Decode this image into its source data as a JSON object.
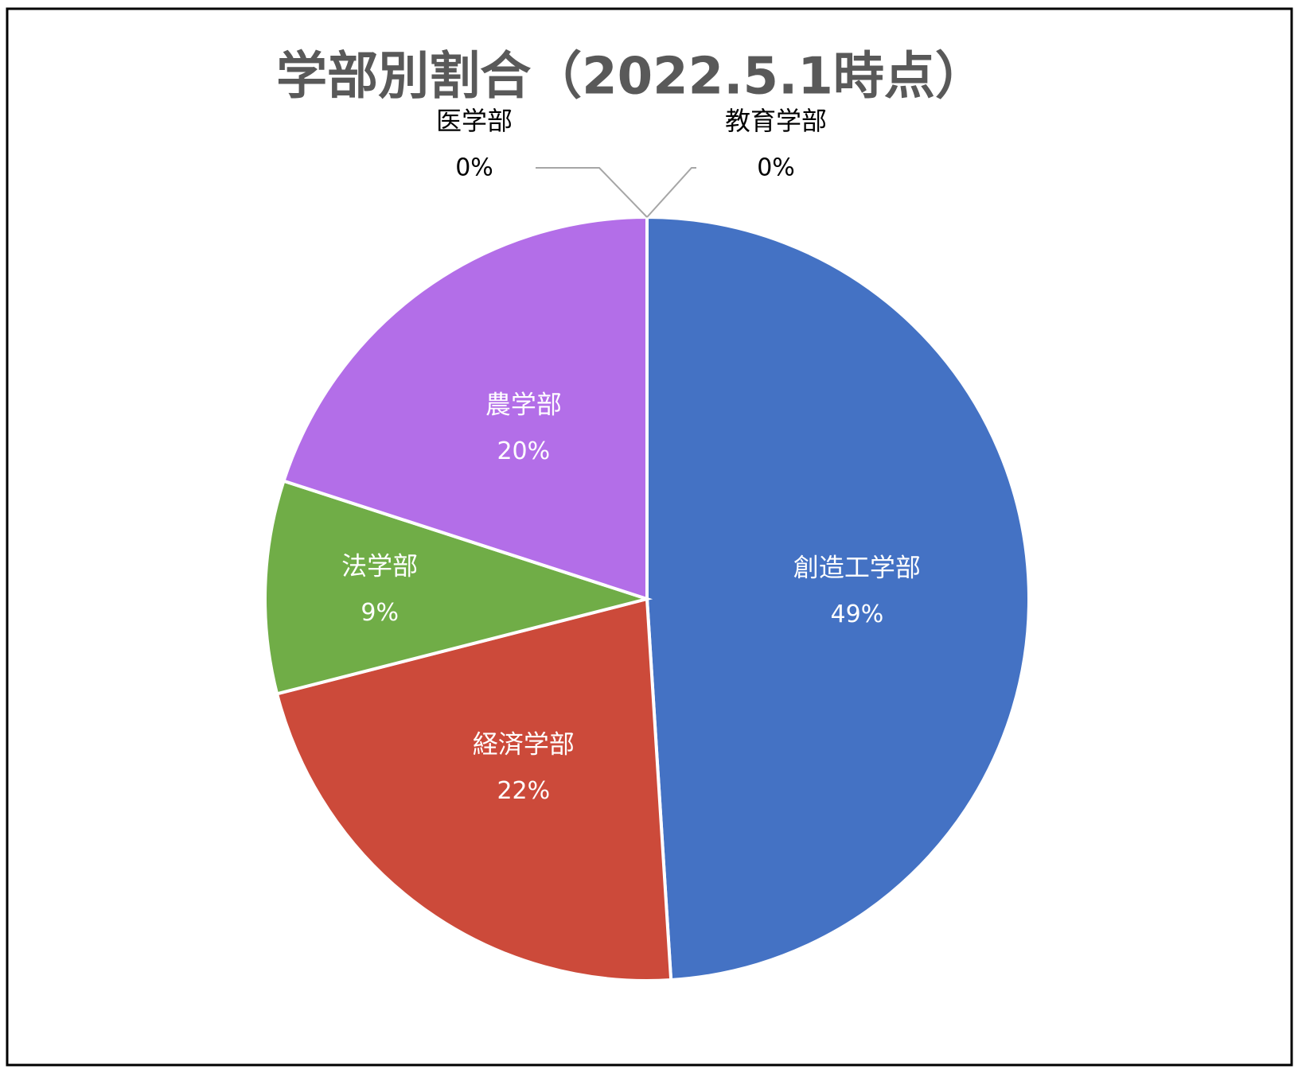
{
  "chart_data": {
    "type": "pie",
    "title": "学部別割合（2022.5.1時点）",
    "categories": [
      "教育学部",
      "創造工学部",
      "経済学部",
      "法学部",
      "農学部",
      "医学部"
    ],
    "values": [
      0,
      49,
      22,
      9,
      20,
      0
    ],
    "value_labels": [
      "0%",
      "49%",
      "22%",
      "9%",
      "20%",
      "0%"
    ],
    "colors": [
      "#ed7d31",
      "#4472c4",
      "#cc4a3a",
      "#70ad47",
      "#b36ee8",
      "#a5a5a5"
    ]
  }
}
